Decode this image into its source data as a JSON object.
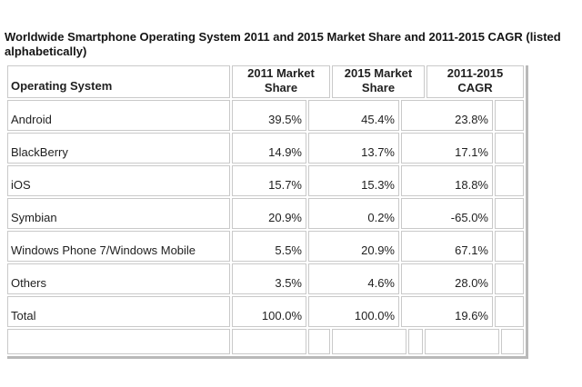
{
  "title": {
    "line1": "Worldwide Smartphone Operating System 2011 and 2015 Market Share and 2011-2015 CAGR (listed",
    "line2": "alphabetically)"
  },
  "table": {
    "header": {
      "os": "Operating System",
      "col2011": {
        "l1": "2011 Market",
        "l2": "Share"
      },
      "col2015": {
        "l1": "2015 Market",
        "l2": "Share"
      },
      "cagr": {
        "l1": "2011-2015",
        "l2": "CAGR"
      }
    },
    "rows": [
      {
        "name": "Android",
        "s2011": "39.5%",
        "s2015": "45.4%",
        "cagr": "23.8%"
      },
      {
        "name": "BlackBerry",
        "s2011": "14.9%",
        "s2015": "13.7%",
        "cagr": "17.1%"
      },
      {
        "name": "iOS",
        "s2011": "15.7%",
        "s2015": "15.3%",
        "cagr": "18.8%"
      },
      {
        "name": "Symbian",
        "s2011": "20.9%",
        "s2015": "0.2%",
        "cagr": "-65.0%"
      },
      {
        "name": "Windows Phone 7/Windows Mobile",
        "s2011": "5.5%",
        "s2015": "20.9%",
        "cagr": "67.1%"
      },
      {
        "name": "Others",
        "s2011": "3.5%",
        "s2015": "4.6%",
        "cagr": "28.0%"
      },
      {
        "name": "Total",
        "s2011": "100.0%",
        "s2015": "100.0%",
        "cagr": "19.6%"
      }
    ]
  },
  "chart_data": {
    "type": "table",
    "title": "Worldwide Smartphone Operating System 2011 and 2015 Market Share and 2011-2015 CAGR (listed alphabetically)",
    "columns": [
      "Operating System",
      "2011 Market Share",
      "2015 Market Share",
      "2011-2015 CAGR"
    ],
    "units": "percent",
    "rows": [
      [
        "Android",
        39.5,
        45.4,
        23.8
      ],
      [
        "BlackBerry",
        14.9,
        13.7,
        17.1
      ],
      [
        "iOS",
        15.7,
        15.3,
        18.8
      ],
      [
        "Symbian",
        20.9,
        0.2,
        -65.0
      ],
      [
        "Windows Phone 7/Windows Mobile",
        5.5,
        20.9,
        67.1
      ],
      [
        "Others",
        3.5,
        4.6,
        28.0
      ],
      [
        "Total",
        100.0,
        100.0,
        19.6
      ]
    ]
  },
  "colors": {
    "background": "#ffffff",
    "cell_border": "#c9c9c9",
    "outer_border": "#b9b9b9",
    "text": "#1f1f1f"
  }
}
